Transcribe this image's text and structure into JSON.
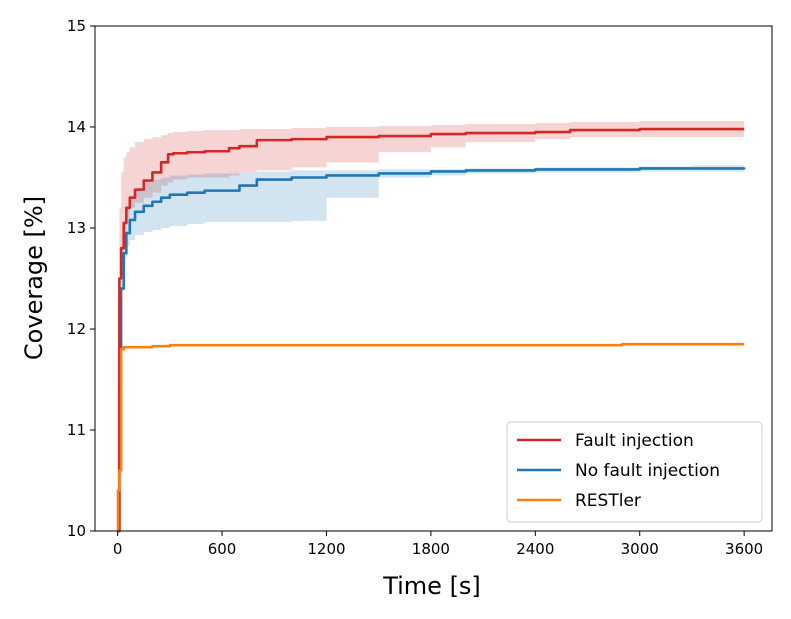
{
  "chart_data": {
    "type": "line",
    "xlabel": "Time [s]",
    "ylabel": "Coverage [%]",
    "xlim": [
      -130,
      3760
    ],
    "ylim": [
      10,
      15
    ],
    "xticks": [
      0,
      600,
      1200,
      1800,
      2400,
      3000,
      3600
    ],
    "yticks": [
      10,
      11,
      12,
      13,
      14,
      15
    ],
    "xtick_labels": [
      "0",
      "600",
      "1200",
      "1800",
      "2400",
      "3000",
      "3600"
    ],
    "ytick_labels": [
      "10",
      "11",
      "12",
      "13",
      "14",
      "15"
    ],
    "grid": false,
    "legend_position": "lower-right",
    "series": [
      {
        "name": "Fault injection",
        "color": "#d62728",
        "x": [
          0,
          10,
          20,
          35,
          50,
          70,
          100,
          150,
          200,
          250,
          290,
          320,
          400,
          500,
          640,
          700,
          800,
          1000,
          1200,
          1500,
          1800,
          2000,
          2400,
          2600,
          3000,
          3600
        ],
        "y": [
          10.0,
          12.5,
          12.8,
          13.05,
          13.2,
          13.3,
          13.38,
          13.47,
          13.55,
          13.65,
          13.73,
          13.74,
          13.75,
          13.76,
          13.79,
          13.81,
          13.87,
          13.88,
          13.9,
          13.91,
          13.93,
          13.94,
          13.95,
          13.97,
          13.98,
          13.98
        ],
        "band_upper": [
          10.5,
          13.2,
          13.55,
          13.7,
          13.75,
          13.8,
          13.85,
          13.88,
          13.9,
          13.92,
          13.94,
          13.95,
          13.96,
          13.97,
          13.97,
          13.98,
          13.98,
          13.99,
          14.0,
          14.01,
          14.02,
          14.03,
          14.04,
          14.05,
          14.06,
          14.08
        ],
        "band_lower": [
          10.0,
          11.8,
          12.3,
          12.7,
          12.95,
          13.1,
          13.2,
          13.25,
          13.3,
          13.35,
          13.42,
          13.45,
          13.48,
          13.5,
          13.5,
          13.52,
          13.55,
          13.57,
          13.6,
          13.65,
          13.75,
          13.8,
          13.85,
          13.88,
          13.9,
          13.9
        ]
      },
      {
        "name": "No fault injection",
        "color": "#1f77b4",
        "x": [
          0,
          10,
          20,
          35,
          50,
          70,
          100,
          150,
          200,
          250,
          300,
          400,
          500,
          700,
          800,
          1000,
          1200,
          1500,
          1800,
          2000,
          2400,
          2800,
          3000,
          3300,
          3600
        ],
        "y": [
          10.0,
          11.8,
          12.4,
          12.75,
          12.95,
          13.08,
          13.16,
          13.22,
          13.26,
          13.3,
          13.33,
          13.35,
          13.37,
          13.42,
          13.48,
          13.5,
          13.52,
          13.54,
          13.56,
          13.57,
          13.58,
          13.58,
          13.59,
          13.59,
          13.6
        ],
        "band_upper": [
          10.3,
          12.3,
          12.8,
          13.05,
          13.2,
          13.32,
          13.4,
          13.45,
          13.48,
          13.5,
          13.52,
          13.53,
          13.54,
          13.55,
          13.56,
          13.57,
          13.57,
          13.58,
          13.58,
          13.59,
          13.6,
          13.6,
          13.61,
          13.62,
          13.65
        ],
        "band_lower": [
          10.0,
          11.4,
          12.1,
          12.5,
          12.7,
          12.82,
          12.88,
          12.93,
          12.96,
          12.98,
          13.0,
          13.02,
          13.04,
          13.06,
          13.06,
          13.06,
          13.07,
          13.3,
          13.5,
          13.52,
          13.54,
          13.55,
          13.55,
          13.56,
          13.56
        ]
      },
      {
        "name": "RESTler",
        "color": "#ff7f0e",
        "x": [
          0,
          2,
          10,
          15,
          20,
          30,
          35,
          40,
          100,
          200,
          300,
          350,
          500,
          1000,
          2000,
          2900,
          3000,
          3600
        ],
        "y": [
          10.0,
          10.4,
          10.6,
          10.6,
          11.8,
          11.8,
          11.82,
          11.82,
          11.82,
          11.83,
          11.84,
          11.84,
          11.84,
          11.84,
          11.84,
          11.85,
          11.85,
          11.85
        ]
      }
    ]
  }
}
